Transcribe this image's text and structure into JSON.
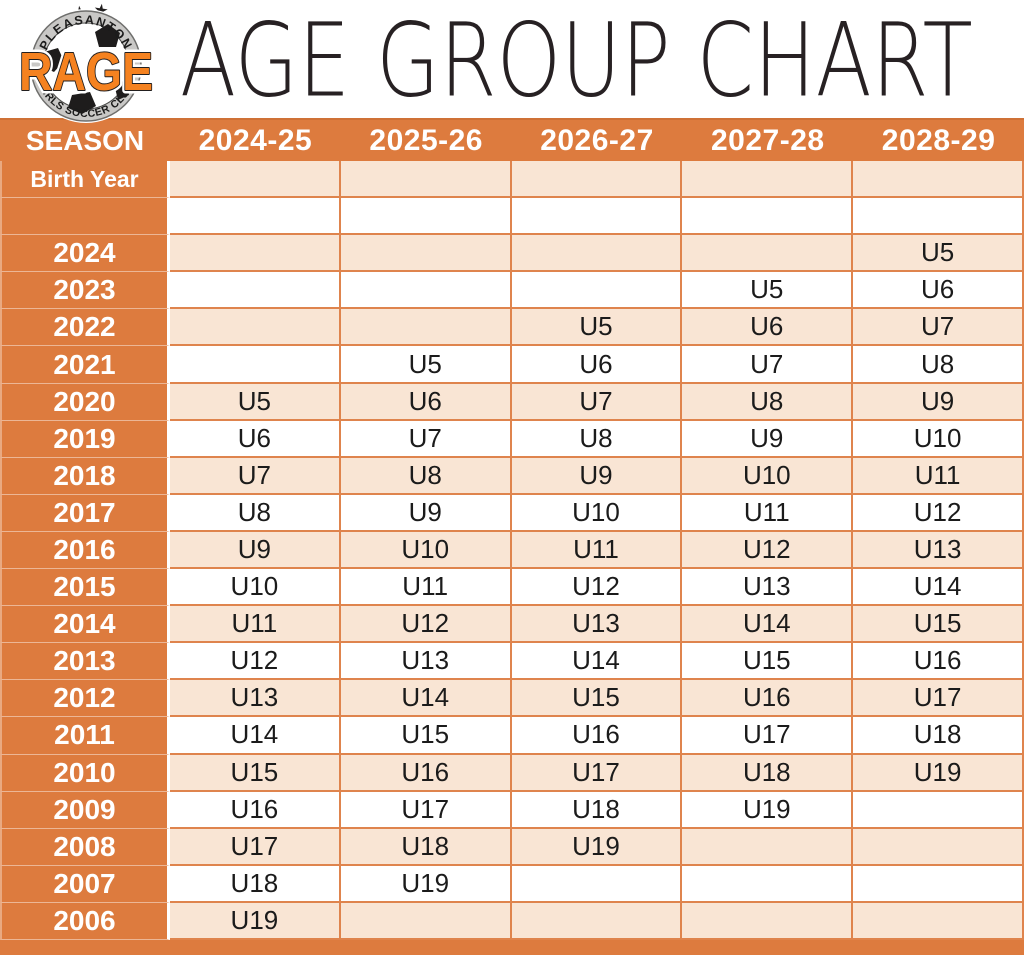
{
  "page": {
    "title": "AGE GROUP CHART"
  },
  "logo": {
    "club_name": "RAGE",
    "arc_top_text": "PLEASANTON",
    "arc_bottom_text": "GIRLS SOCCER CLUB",
    "star": "★",
    "colors": {
      "rage_orange": "#F58220",
      "ring_gray": "#C9C8C6",
      "outline_black": "#221F1F"
    }
  },
  "colors": {
    "header_orange": "#DD7B3E",
    "grid_orange": "#DF844D",
    "row_peach": "#F9E5D4",
    "row_white": "#FFFFFF",
    "header_text": "#FFFFFF",
    "cell_text": "#1B1B1B",
    "title_text": "#272123"
  },
  "chart_data": {
    "type": "table",
    "title": "AGE GROUP CHART",
    "corner_header": "SEASON",
    "corner_subheader": "Birth Year",
    "season_columns": [
      "2024-25",
      "2025-26",
      "2026-27",
      "2027-28",
      "2028-29"
    ],
    "rows": [
      {
        "type": "subheader",
        "label": "Birth Year",
        "values": [
          "",
          "",
          "",
          "",
          ""
        ]
      },
      {
        "type": "spacer",
        "label": "",
        "values": [
          "",
          "",
          "",
          "",
          ""
        ]
      },
      {
        "type": "year",
        "label": "2024",
        "values": [
          "",
          "",
          "",
          "",
          "U5"
        ]
      },
      {
        "type": "year",
        "label": "2023",
        "values": [
          "",
          "",
          "",
          "U5",
          "U6"
        ]
      },
      {
        "type": "year",
        "label": "2022",
        "values": [
          "",
          "",
          "U5",
          "U6",
          "U7"
        ]
      },
      {
        "type": "year",
        "label": "2021",
        "values": [
          "",
          "U5",
          "U6",
          "U7",
          "U8"
        ]
      },
      {
        "type": "year",
        "label": "2020",
        "values": [
          "U5",
          "U6",
          "U7",
          "U8",
          "U9"
        ]
      },
      {
        "type": "year",
        "label": "2019",
        "values": [
          "U6",
          "U7",
          "U8",
          "U9",
          "U10"
        ]
      },
      {
        "type": "year",
        "label": "2018",
        "values": [
          "U7",
          "U8",
          "U9",
          "U10",
          "U11"
        ]
      },
      {
        "type": "year",
        "label": "2017",
        "values": [
          "U8",
          "U9",
          "U10",
          "U11",
          "U12"
        ]
      },
      {
        "type": "year",
        "label": "2016",
        "values": [
          "U9",
          "U10",
          "U11",
          "U12",
          "U13"
        ]
      },
      {
        "type": "year",
        "label": "2015",
        "values": [
          "U10",
          "U11",
          "U12",
          "U13",
          "U14"
        ]
      },
      {
        "type": "year",
        "label": "2014",
        "values": [
          "U11",
          "U12",
          "U13",
          "U14",
          "U15"
        ]
      },
      {
        "type": "year",
        "label": "2013",
        "values": [
          "U12",
          "U13",
          "U14",
          "U15",
          "U16"
        ]
      },
      {
        "type": "year",
        "label": "2012",
        "values": [
          "U13",
          "U14",
          "U15",
          "U16",
          "U17"
        ]
      },
      {
        "type": "year",
        "label": "2011",
        "values": [
          "U14",
          "U15",
          "U16",
          "U17",
          "U18"
        ]
      },
      {
        "type": "year",
        "label": "2010",
        "values": [
          "U15",
          "U16",
          "U17",
          "U18",
          "U19"
        ]
      },
      {
        "type": "year",
        "label": "2009",
        "values": [
          "U16",
          "U17",
          "U18",
          "U19",
          ""
        ]
      },
      {
        "type": "year",
        "label": "2008",
        "values": [
          "U17",
          "U18",
          "U19",
          "",
          ""
        ]
      },
      {
        "type": "year",
        "label": "2007",
        "values": [
          "U18",
          "U19",
          "",
          "",
          ""
        ]
      },
      {
        "type": "year",
        "label": "2006",
        "values": [
          "U19",
          "",
          "",
          "",
          ""
        ]
      }
    ]
  }
}
